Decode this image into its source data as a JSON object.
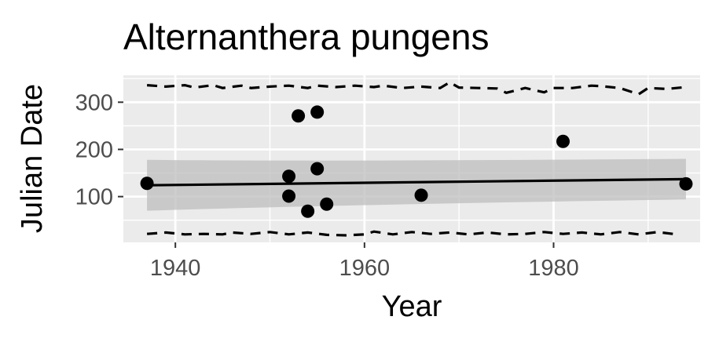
{
  "chart_data": {
    "type": "scatter",
    "title": "Alternanthera pungens",
    "xlabel": "Year",
    "ylabel": "Julian Date",
    "xlim": [
      1934.5,
      1995.5
    ],
    "ylim": [
      3,
      357
    ],
    "x_ticks": [
      1940,
      1960,
      1980
    ],
    "y_ticks": [
      100,
      200,
      300
    ],
    "grid": true,
    "legend": "none",
    "colors": {
      "panel": "#ebebeb",
      "grid": "#ffffff",
      "points": "#000000",
      "ribbon": "#bdbdbd",
      "tick_text": "#4d4d4d"
    },
    "points": [
      {
        "x": 1937,
        "y": 128
      },
      {
        "x": 1952,
        "y": 143
      },
      {
        "x": 1952,
        "y": 101
      },
      {
        "x": 1953,
        "y": 271
      },
      {
        "x": 1954,
        "y": 69
      },
      {
        "x": 1955,
        "y": 279
      },
      {
        "x": 1955,
        "y": 159
      },
      {
        "x": 1956,
        "y": 84
      },
      {
        "x": 1966,
        "y": 103
      },
      {
        "x": 1981,
        "y": 217
      },
      {
        "x": 1994,
        "y": 127
      }
    ],
    "fit": {
      "x": [
        1937,
        1994
      ],
      "y": [
        124,
        137
      ],
      "ci_lower": [
        70,
        94
      ],
      "ci_upper": [
        178,
        180
      ],
      "ci_mid_x": 1955,
      "ci_mid_lower": [
        112
      ],
      "ci_mid_upper": [
        144
      ]
    },
    "upper_band": {
      "x": [
        1937,
        1939,
        1941,
        1942,
        1944,
        1945,
        1947,
        1948,
        1950,
        1952,
        1954,
        1955,
        1957,
        1959,
        1961,
        1962,
        1964,
        1966,
        1968,
        1969,
        1970,
        1972,
        1974,
        1975,
        1977,
        1979,
        1980,
        1982,
        1984,
        1985,
        1987,
        1989,
        1990,
        1992,
        1994
      ],
      "y": [
        336,
        333,
        336,
        331,
        336,
        330,
        335,
        330,
        333,
        335,
        330,
        335,
        332,
        335,
        332,
        335,
        330,
        333,
        330,
        342,
        331,
        330,
        329,
        320,
        330,
        321,
        330,
        330,
        335,
        334,
        330,
        317,
        330,
        328,
        332
      ]
    },
    "lower_band": {
      "x": [
        1937,
        1939,
        1941,
        1943,
        1945,
        1946,
        1948,
        1950,
        1952,
        1954,
        1956,
        1958,
        1960,
        1961,
        1963,
        1965,
        1967,
        1969,
        1971,
        1973,
        1975,
        1977,
        1979,
        1981,
        1983,
        1985,
        1987,
        1989,
        1991,
        1993
      ],
      "y": [
        21,
        24,
        20,
        21,
        20,
        24,
        21,
        25,
        20,
        24,
        19,
        18,
        20,
        26,
        20,
        25,
        21,
        24,
        20,
        24,
        20,
        21,
        25,
        21,
        24,
        20,
        25,
        20,
        25,
        20
      ]
    }
  }
}
